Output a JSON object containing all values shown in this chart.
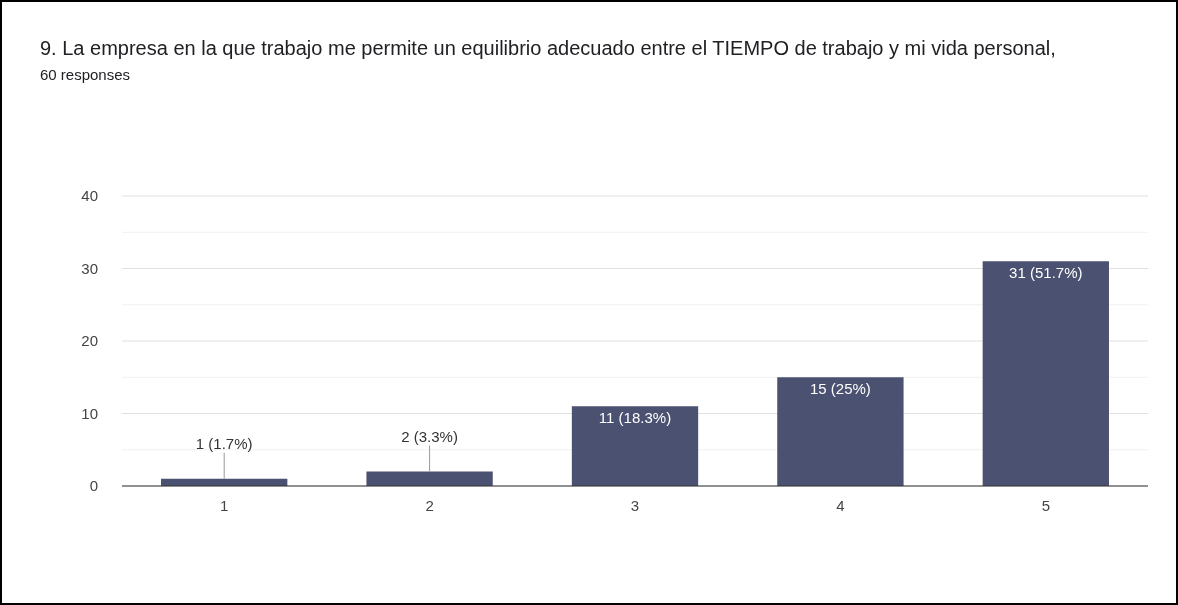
{
  "chart_data": {
    "type": "bar",
    "title": "9. La empresa en la que trabajo me permite un equilibrio adecuado entre el TIEMPO de trabajo y mi vida personal,",
    "subtitle": "60 responses",
    "categories": [
      "1",
      "2",
      "3",
      "4",
      "5"
    ],
    "values": [
      1,
      2,
      11,
      15,
      31
    ],
    "value_labels": [
      "1 (1.7%)",
      "2 (3.3%)",
      "11 (18.3%)",
      "15 (25%)",
      "31 (51.7%)"
    ],
    "color": "#4b5170",
    "ylim": [
      0,
      40
    ],
    "yticks": [
      0,
      {
        "value": 5,
        "label": null
      },
      10,
      {
        "value": 15,
        "label": null
      },
      20,
      {
        "value": 25,
        "label": null
      },
      30,
      {
        "value": 35,
        "label": null
      },
      40
    ],
    "grid": "y"
  }
}
